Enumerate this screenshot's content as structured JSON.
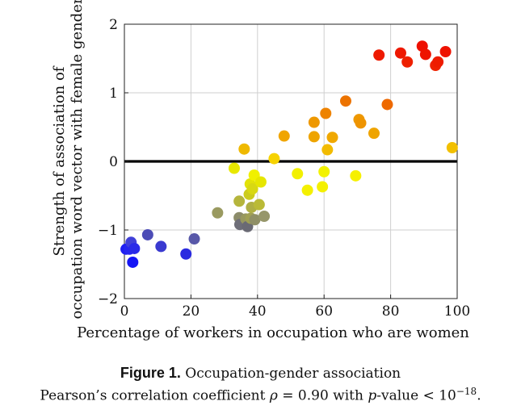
{
  "chart_data": {
    "type": "scatter",
    "title": "",
    "xlabel": "Percentage of workers in occupation who are women",
    "ylabel_line1": "Strength of association of",
    "ylabel_line2": "occupation word vector with female gender",
    "xlim": [
      0,
      100
    ],
    "ylim": [
      -2,
      2
    ],
    "xticks": [
      0,
      20,
      40,
      60,
      80,
      100
    ],
    "yticks": [
      -2,
      -1,
      0,
      1,
      2
    ],
    "grid": true,
    "zero_line": true,
    "color_scale": "blue (low %) to yellow (mid) to red (high %)",
    "points": [
      {
        "x": 0.5,
        "y": -1.28,
        "color": "#1f1ff2"
      },
      {
        "x": 1.5,
        "y": -1.28,
        "color": "#2626f0"
      },
      {
        "x": 2.0,
        "y": -1.18,
        "color": "#4040d8"
      },
      {
        "x": 2.5,
        "y": -1.47,
        "color": "#1515f5"
      },
      {
        "x": 3.0,
        "y": -1.27,
        "color": "#2a2ae8"
      },
      {
        "x": 7.0,
        "y": -1.07,
        "color": "#4c4cb6"
      },
      {
        "x": 11.0,
        "y": -1.24,
        "color": "#3a3ad0"
      },
      {
        "x": 18.5,
        "y": -1.35,
        "color": "#2b2be0"
      },
      {
        "x": 21.0,
        "y": -1.13,
        "color": "#5858a8"
      },
      {
        "x": 28.0,
        "y": -0.75,
        "color": "#9a9a60"
      },
      {
        "x": 33.0,
        "y": -0.1,
        "color": "#e8e800"
      },
      {
        "x": 34.5,
        "y": -0.58,
        "color": "#b5b53c"
      },
      {
        "x": 34.5,
        "y": -0.82,
        "color": "#8c8c6a"
      },
      {
        "x": 34.7,
        "y": -0.92,
        "color": "#6e6e78"
      },
      {
        "x": 36.0,
        "y": 0.18,
        "color": "#efb900"
      },
      {
        "x": 36.5,
        "y": -0.84,
        "color": "#98985e"
      },
      {
        "x": 37.0,
        "y": -0.95,
        "color": "#6a6a74"
      },
      {
        "x": 37.5,
        "y": -0.48,
        "color": "#cccc1c"
      },
      {
        "x": 37.8,
        "y": -0.33,
        "color": "#e2e208"
      },
      {
        "x": 38.0,
        "y": -0.83,
        "color": "#a0a054"
      },
      {
        "x": 38.2,
        "y": -0.67,
        "color": "#afaf44"
      },
      {
        "x": 38.5,
        "y": -0.4,
        "color": "#d8d812"
      },
      {
        "x": 39.0,
        "y": -0.2,
        "color": "#f0f000"
      },
      {
        "x": 39.2,
        "y": -0.85,
        "color": "#8f8f66"
      },
      {
        "x": 40.5,
        "y": -0.63,
        "color": "#baba36"
      },
      {
        "x": 41.0,
        "y": -0.3,
        "color": "#e6e600"
      },
      {
        "x": 42.0,
        "y": -0.8,
        "color": "#96966a"
      },
      {
        "x": 45.0,
        "y": 0.04,
        "color": "#f6d200"
      },
      {
        "x": 48.0,
        "y": 0.37,
        "color": "#f0a500"
      },
      {
        "x": 52.0,
        "y": -0.18,
        "color": "#f2f000"
      },
      {
        "x": 55.0,
        "y": -0.42,
        "color": "#f4f000"
      },
      {
        "x": 57.0,
        "y": 0.36,
        "color": "#eea400"
      },
      {
        "x": 57.0,
        "y": 0.57,
        "color": "#ee9800"
      },
      {
        "x": 59.5,
        "y": -0.37,
        "color": "#f4f000"
      },
      {
        "x": 60.0,
        "y": -0.15,
        "color": "#f2f200"
      },
      {
        "x": 60.5,
        "y": 0.7,
        "color": "#ee8300"
      },
      {
        "x": 61.0,
        "y": 0.17,
        "color": "#f2bb00"
      },
      {
        "x": 62.5,
        "y": 0.35,
        "color": "#f0a800"
      },
      {
        "x": 66.5,
        "y": 0.88,
        "color": "#ec7300"
      },
      {
        "x": 69.5,
        "y": -0.21,
        "color": "#f6f000"
      },
      {
        "x": 70.5,
        "y": 0.61,
        "color": "#ee9800"
      },
      {
        "x": 71.0,
        "y": 0.56,
        "color": "#ee9400"
      },
      {
        "x": 75.0,
        "y": 0.41,
        "color": "#efa400"
      },
      {
        "x": 76.5,
        "y": 1.55,
        "color": "#ee1a00"
      },
      {
        "x": 79.0,
        "y": 0.83,
        "color": "#ee6900"
      },
      {
        "x": 83.0,
        "y": 1.58,
        "color": "#ee1800"
      },
      {
        "x": 85.0,
        "y": 1.45,
        "color": "#ee2000"
      },
      {
        "x": 89.5,
        "y": 1.68,
        "color": "#ee1000"
      },
      {
        "x": 90.5,
        "y": 1.56,
        "color": "#ee1400"
      },
      {
        "x": 93.5,
        "y": 1.4,
        "color": "#ee2200"
      },
      {
        "x": 94.2,
        "y": 1.45,
        "color": "#ee1c00"
      },
      {
        "x": 96.5,
        "y": 1.6,
        "color": "#ee1200"
      },
      {
        "x": 98.5,
        "y": 0.2,
        "color": "#f2c000"
      }
    ]
  },
  "caption": {
    "figure_label": "Figure 1.",
    "title": "Occupation-gender association",
    "line2_prefix": "Pearson’s correlation coefficient ",
    "rho": "ρ",
    "line2_mid": " = 0.90 with ",
    "p": "p",
    "line2_suffix": "-value < 10",
    "exponent": "−18",
    "period": "."
  }
}
